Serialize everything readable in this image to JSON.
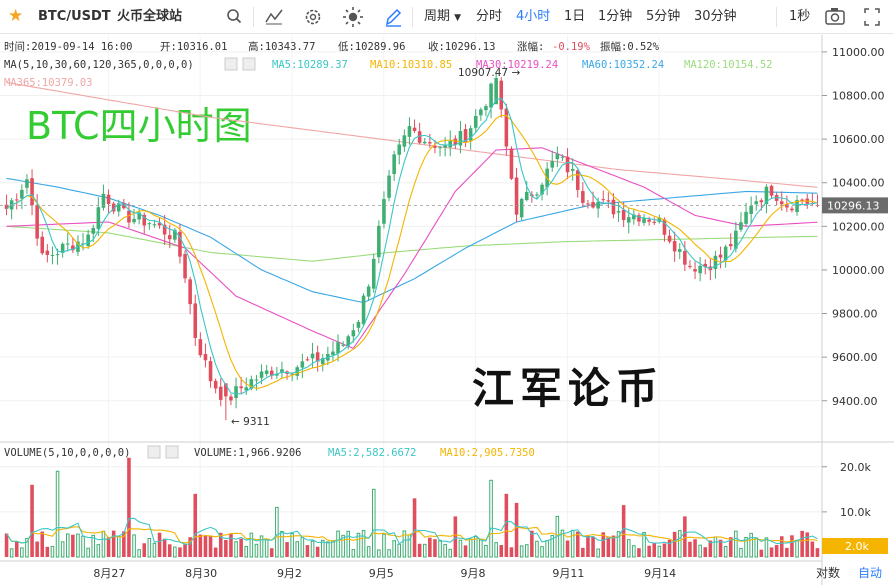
{
  "toolbar": {
    "symbol": "BTC/USDT",
    "exchange": "火币全球站",
    "period_label": "周期",
    "intervals": [
      "分时",
      "4小时",
      "1日",
      "1分钟",
      "5分钟",
      "30分钟"
    ],
    "active_interval": "4小时",
    "refresh": "1秒",
    "star_icon": "star-icon",
    "colors": {
      "star": "#f5a623",
      "active": "#2b7cff",
      "icon": "#555555"
    }
  },
  "ohlc_legend": {
    "time": "时间:2019-09-14 16:00",
    "open": "开:10316.01",
    "high": "高:10343.77",
    "low": "低:10289.96",
    "close": "收:10296.13",
    "change": "涨幅:-0.19%",
    "amplitude": "振幅:0.52%"
  },
  "ma_legend": {
    "params": "MA(5,10,30,60,120,365,0,0,0,0)",
    "ma5": "MA5:10289.37",
    "ma10": "MA10:10310.85",
    "ma30": "MA30:10219.24",
    "ma60": "MA60:10352.24",
    "ma120": "MA120:10154.52",
    "ma365": "MA365:10379.03"
  },
  "watermark_title": "BTC四小时图",
  "watermark_brand": "江军论币",
  "price_marks": {
    "high": "10907.47 →",
    "low": "← 9311"
  },
  "last_price": "10296.13",
  "volume_legend": {
    "params": "VOLUME(5,10,0,0,0,0)",
    "value": "VOLUME:1,966.9206",
    "ma5": "MA5:2,582.6672",
    "ma10": "MA10:2,905.7350"
  },
  "volume_tag": "2.0k",
  "footer": {
    "log_label": "对数",
    "auto_label": "自动"
  },
  "chart_data": {
    "type": "candlestick",
    "symbol": "BTC/USDT",
    "x_ticks": [
      "8月27",
      "8月30",
      "9月2",
      "9月5",
      "9月8",
      "9月11",
      "9月14"
    ],
    "y_ticks": [
      9400,
      9600,
      9800,
      10000,
      10200,
      10400,
      10600,
      10800,
      11000
    ],
    "y_tick_labels": [
      "9400.00",
      "9600.00",
      "9800.00",
      "10000.00",
      "10200.00",
      "10400.00",
      "10600.00",
      "10800.00",
      "11000.00"
    ],
    "ylim": [
      9220,
      11050
    ],
    "volume_ticks": [
      10000,
      20000
    ],
    "volume_tick_labels": [
      "10.0k",
      "20.0k"
    ],
    "volume_ylim": [
      0,
      21500
    ],
    "last_price": 10296.13,
    "colors": {
      "up": "#3fae72",
      "down": "#e04e5e",
      "ma5": "#3cc6c6",
      "ma10": "#f4b400",
      "ma30": "#e94fc4",
      "ma60": "#3aa7e6",
      "ma120": "#9bdc7e",
      "ma365": "#f0a6a6"
    },
    "anchors": [
      [
        0,
        10280
      ],
      [
        4,
        10420
      ],
      [
        7,
        10050
      ],
      [
        11,
        10100
      ],
      [
        16,
        10150
      ],
      [
        19,
        10350
      ],
      [
        23,
        10250
      ],
      [
        28,
        10220
      ],
      [
        33,
        10150
      ],
      [
        35,
        9980
      ],
      [
        37,
        9700
      ],
      [
        40,
        9500
      ],
      [
        43,
        9400
      ],
      [
        47,
        9480
      ],
      [
        52,
        9540
      ],
      [
        57,
        9560
      ],
      [
        62,
        9600
      ],
      [
        66,
        9660
      ],
      [
        69,
        9780
      ],
      [
        71,
        9950
      ],
      [
        74,
        10300
      ],
      [
        76,
        10500
      ],
      [
        79,
        10650
      ],
      [
        82,
        10600
      ],
      [
        86,
        10560
      ],
      [
        90,
        10620
      ],
      [
        93,
        10740
      ],
      [
        96,
        10860
      ],
      [
        98,
        10560
      ],
      [
        100,
        10280
      ],
      [
        104,
        10380
      ],
      [
        108,
        10520
      ],
      [
        111,
        10440
      ],
      [
        113,
        10340
      ],
      [
        117,
        10300
      ],
      [
        121,
        10260
      ],
      [
        125,
        10250
      ],
      [
        128,
        10220
      ],
      [
        131,
        10120
      ],
      [
        134,
        10020
      ],
      [
        137,
        10020
      ],
      [
        140,
        10060
      ],
      [
        143,
        10150
      ],
      [
        146,
        10310
      ],
      [
        150,
        10370
      ],
      [
        153,
        10300
      ],
      [
        156,
        10320
      ],
      [
        159,
        10296
      ]
    ],
    "ma_keyframes": {
      "ma30": [
        [
          0,
          10200
        ],
        [
          20,
          10220
        ],
        [
          35,
          10100
        ],
        [
          45,
          9880
        ],
        [
          60,
          9720
        ],
        [
          68,
          9640
        ],
        [
          78,
          9980
        ],
        [
          88,
          10360
        ],
        [
          96,
          10550
        ],
        [
          105,
          10560
        ],
        [
          115,
          10470
        ],
        [
          125,
          10380
        ],
        [
          135,
          10250
        ],
        [
          145,
          10200
        ],
        [
          159,
          10219
        ]
      ],
      "ma60": [
        [
          0,
          10420
        ],
        [
          10,
          10380
        ],
        [
          20,
          10330
        ],
        [
          30,
          10250
        ],
        [
          40,
          10150
        ],
        [
          50,
          10000
        ],
        [
          60,
          9900
        ],
        [
          70,
          9850
        ],
        [
          80,
          9960
        ],
        [
          90,
          10100
        ],
        [
          100,
          10220
        ],
        [
          115,
          10300
        ],
        [
          130,
          10330
        ],
        [
          145,
          10360
        ],
        [
          159,
          10352
        ]
      ],
      "ma120": [
        [
          0,
          10200
        ],
        [
          20,
          10170
        ],
        [
          40,
          10080
        ],
        [
          60,
          10040
        ],
        [
          75,
          10080
        ],
        [
          90,
          10110
        ],
        [
          110,
          10130
        ],
        [
          130,
          10140
        ],
        [
          150,
          10150
        ],
        [
          159,
          10154
        ]
      ],
      "ma365": [
        [
          0,
          10860
        ],
        [
          20,
          10780
        ],
        [
          40,
          10700
        ],
        [
          60,
          10640
        ],
        [
          80,
          10580
        ],
        [
          100,
          10520
        ],
        [
          120,
          10460
        ],
        [
          140,
          10420
        ],
        [
          159,
          10379
        ]
      ]
    },
    "volume_highlights": [
      [
        5,
        16000
      ],
      [
        10,
        19000
      ],
      [
        24,
        22000
      ],
      [
        37,
        14000
      ],
      [
        53,
        11000
      ],
      [
        72,
        15000
      ],
      [
        80,
        13000
      ],
      [
        88,
        9000
      ],
      [
        95,
        17000
      ],
      [
        98,
        14000
      ],
      [
        100,
        12000
      ],
      [
        108,
        9000
      ],
      [
        121,
        11500
      ],
      [
        133,
        9000
      ]
    ]
  }
}
